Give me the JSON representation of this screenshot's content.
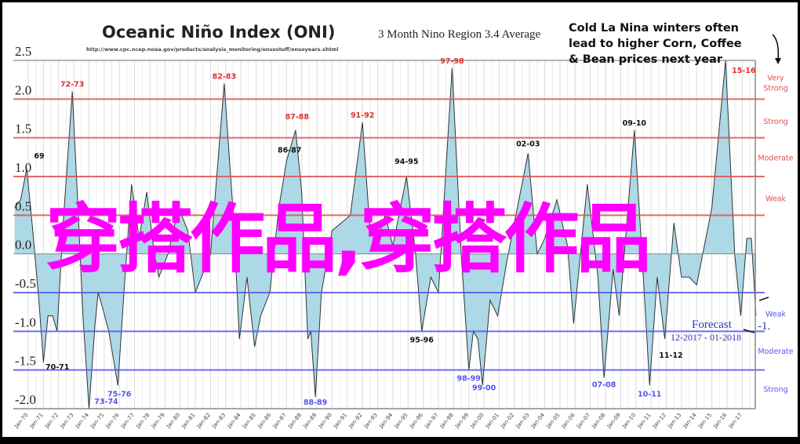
{
  "chart_data": {
    "type": "area",
    "title": "Oceanic Niño Index (ONI)",
    "subtitle": "3 Month Nino Region 3.4 Average",
    "source_url": "http://www.cpc.ncep.noaa.gov/products/analysis_monitoring/ensostuff/ensoyears.shtml",
    "ylim": [
      -2.0,
      2.5
    ],
    "yticks": [
      "2.5",
      "2.0",
      "1.5",
      "1.0",
      "0.5",
      "0.0",
      "-0.5",
      "-1.0",
      "-1.5",
      "-2.0"
    ],
    "ytick_values": [
      2.5,
      2.0,
      1.5,
      1.0,
      0.5,
      0.0,
      -0.5,
      -1.0,
      -1.5,
      -2.0
    ],
    "xlim": [
      1969.05,
      2018.0
    ],
    "xticks": [
      "Jan-70",
      "Jan-71",
      "Jan-72",
      "Jan-73",
      "Jan-74",
      "Jan-75",
      "Jan-76",
      "Jan-77",
      "Jan-78",
      "Jan-79",
      "Jan-80",
      "Jan-81",
      "Jan-82",
      "Jan-83",
      "Jan-84",
      "Jan-85",
      "Jan-86",
      "Jan-87",
      "Jan-88",
      "Jan-89",
      "Jan-90",
      "Jan-91",
      "Jan-92",
      "Jan-93",
      "Jan-94",
      "Jan-95",
      "Jan-96",
      "Jan-97",
      "Jan-98",
      "Jan-99",
      "Jan-00",
      "Jan-01",
      "Jan-02",
      "Jan-03",
      "Jan-04",
      "Jan-05",
      "Jan-06",
      "Jan-07",
      "Jan-08",
      "Jan-09",
      "Jan-10",
      "Jan-11",
      "Jan-12",
      "Jan-13",
      "Jan-14",
      "Jan-15",
      "Jan-16",
      "Jan-17"
    ],
    "series": [
      {
        "name": "ONI",
        "x": [
          1969.1,
          1969.5,
          1969.9,
          1970.3,
          1970.7,
          1971.0,
          1971.3,
          1971.6,
          1971.9,
          1972.3,
          1972.9,
          1973.3,
          1973.6,
          1974.0,
          1974.4,
          1974.6,
          1974.9,
          1975.3,
          1975.9,
          1976.3,
          1976.8,
          1977.3,
          1977.8,
          1978.3,
          1978.6,
          1979.2,
          1979.9,
          1980.5,
          1981.0,
          1981.4,
          1982.0,
          1982.9,
          1983.5,
          1983.9,
          1984.4,
          1984.9,
          1985.3,
          1985.9,
          1986.5,
          1987.0,
          1987.6,
          1988.0,
          1988.4,
          1988.6,
          1988.9,
          1989.3,
          1990.0,
          1990.6,
          1991.2,
          1992.0,
          1992.5,
          1993.0,
          1993.5,
          1994.0,
          1994.9,
          1995.5,
          1995.9,
          1996.5,
          1997.0,
          1997.9,
          1998.5,
          1999.0,
          1999.3,
          1999.6,
          1999.9,
          2000.4,
          2000.9,
          2001.5,
          2002.9,
          2003.5,
          2004.0,
          2004.8,
          2005.5,
          2005.9,
          2006.8,
          2007.5,
          2007.9,
          2008.5,
          2008.9,
          2009.9,
          2010.4,
          2010.9,
          2011.4,
          2011.9,
          2012.5,
          2013.0,
          2013.5,
          2014.0,
          2014.6,
          2015.0,
          2015.9,
          2016.5,
          2016.9,
          2017.3,
          2017.6,
          2017.9
        ],
        "y": [
          0.6,
          0.7,
          1.1,
          0.3,
          -0.6,
          -1.4,
          -0.8,
          -0.8,
          -1.0,
          0.4,
          2.1,
          0.5,
          -0.8,
          -2.0,
          -0.9,
          -0.5,
          -0.7,
          -1.0,
          -1.7,
          -0.5,
          0.9,
          0.2,
          0.8,
          0.0,
          -0.3,
          0.0,
          0.6,
          0.3,
          -0.5,
          -0.3,
          0.0,
          2.2,
          0.5,
          -1.1,
          -0.3,
          -1.2,
          -0.8,
          -0.5,
          0.6,
          1.2,
          1.6,
          0.8,
          -1.1,
          -1.0,
          -1.85,
          -0.5,
          0.3,
          0.4,
          0.5,
          1.7,
          0.3,
          0.2,
          0.5,
          0.1,
          1.0,
          0.0,
          -1.0,
          -0.3,
          -0.5,
          2.4,
          0.0,
          -1.5,
          -1.0,
          -1.1,
          -1.7,
          -0.6,
          -0.8,
          -0.1,
          1.3,
          0.0,
          0.2,
          0.7,
          0.1,
          -0.9,
          0.9,
          -0.3,
          -1.6,
          -0.2,
          -0.8,
          1.6,
          0.0,
          -1.7,
          -0.3,
          -1.1,
          0.4,
          -0.3,
          -0.3,
          -0.4,
          0.2,
          0.6,
          2.5,
          0.0,
          -0.8,
          0.2,
          0.2,
          -0.8
        ],
        "fill": "#add8e6",
        "line": "#333333"
      }
    ],
    "thresholds": [
      {
        "value": 2.0,
        "color": "#e05050"
      },
      {
        "value": 1.5,
        "color": "#e05050"
      },
      {
        "value": 1.0,
        "color": "#e05050"
      },
      {
        "value": 0.5,
        "color": "#e05050"
      },
      {
        "value": -0.5,
        "color": "#5555ee"
      },
      {
        "value": -1.0,
        "color": "#5555ee"
      },
      {
        "value": -1.5,
        "color": "#5555ee"
      }
    ],
    "strength_labels": [
      {
        "text": "Very",
        "value": 2.28,
        "color": "#e05050"
      },
      {
        "text": "Strong",
        "value": 2.15,
        "color": "#e05050"
      },
      {
        "text": "Strong",
        "value": 1.72,
        "color": "#e05050"
      },
      {
        "text": "Moderate",
        "value": 1.25,
        "color": "#e05050"
      },
      {
        "text": "Weak",
        "value": 0.72,
        "color": "#e05050"
      },
      {
        "text": "Weak",
        "value": -0.77,
        "color": "#5555ee"
      },
      {
        "text": "Moderate",
        "value": -1.25,
        "color": "#5555ee"
      },
      {
        "text": "Strong",
        "value": -1.74,
        "color": "#5555ee"
      }
    ],
    "events": [
      {
        "label": "69",
        "x": 1969.45,
        "y": 1.15,
        "color": "#111111"
      },
      {
        "label": "72-73",
        "x": 1972.9,
        "y": 2.1,
        "color": "#e03030"
      },
      {
        "label": "82-83",
        "x": 1982.9,
        "y": 2.2,
        "color": "#e03030"
      },
      {
        "label": "86-87",
        "x": 1987.2,
        "y": 1.25,
        "color": "#111111"
      },
      {
        "label": "87-88",
        "x": 1987.7,
        "y": 1.68,
        "color": "#e03030"
      },
      {
        "label": "91-92",
        "x": 1992.0,
        "y": 1.7,
        "color": "#e03030"
      },
      {
        "label": "94-95",
        "x": 1994.9,
        "y": 1.1,
        "color": "#111111"
      },
      {
        "label": "97-98",
        "x": 1997.9,
        "y": 2.4,
        "color": "#e03030"
      },
      {
        "label": "02-03",
        "x": 2002.9,
        "y": 1.33,
        "color": "#111111"
      },
      {
        "label": "09-10",
        "x": 2009.9,
        "y": 1.6,
        "color": "#111111"
      },
      {
        "label": "15-16",
        "x": 2015.9,
        "y": 2.5,
        "color": "#e03030"
      },
      {
        "label": "70-71",
        "x": 1971.3,
        "y": -1.35,
        "color": "#111111"
      },
      {
        "label": "73-74",
        "x": 1974.0,
        "y": -1.98,
        "color": "#5555ee"
      },
      {
        "label": "75-76",
        "x": 1976.0,
        "y": -1.7,
        "color": "#5555ee"
      },
      {
        "label": "88-89",
        "x": 1988.9,
        "y": -1.85,
        "color": "#5555ee"
      },
      {
        "label": "95-96",
        "x": 1995.9,
        "y": -1.0,
        "color": "#111111"
      },
      {
        "label": "98-99",
        "x": 1999.0,
        "y": -1.5,
        "color": "#5555ee"
      },
      {
        "label": "99-00",
        "x": 2000.0,
        "y": -1.62,
        "color": "#5555ee"
      },
      {
        "label": "07-08",
        "x": 2007.9,
        "y": -1.58,
        "color": "#5555ee"
      },
      {
        "label": "10-11",
        "x": 2010.9,
        "y": -1.7,
        "color": "#5555ee"
      },
      {
        "label": "11-12",
        "x": 2012.1,
        "y": -1.08,
        "color": "#111111"
      }
    ],
    "annotations": {
      "note_lines": [
        "Cold La Nina winters often",
        "lead to higher Corn, Coffee",
        "& Bean prices next year"
      ],
      "forecast_label": "Forecast",
      "forecast_period": "12-2017 - 01-2018",
      "forecast_value": "-1."
    }
  },
  "overlay_text": "穿搭作品,穿搭作品"
}
